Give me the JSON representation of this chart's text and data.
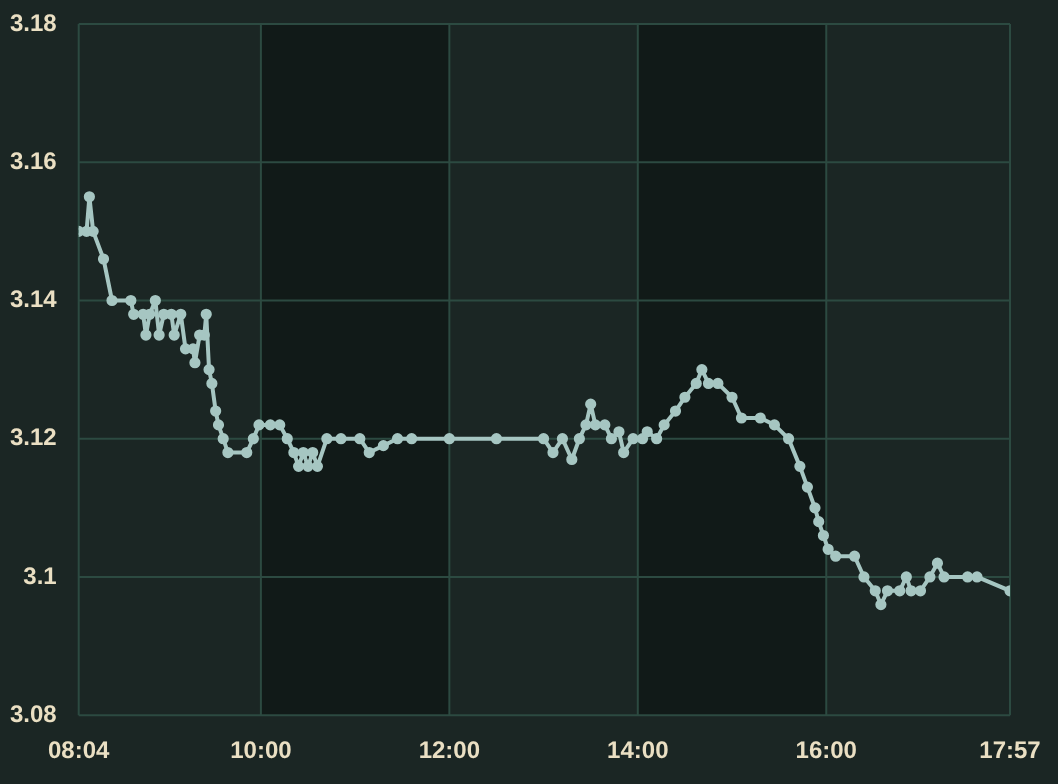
{
  "chart_data": {
    "type": "line",
    "x": [
      8.067,
      8.15,
      8.18,
      8.22,
      8.33,
      8.42,
      8.62,
      8.65,
      8.75,
      8.78,
      8.82,
      8.88,
      8.92,
      8.97,
      9.05,
      9.08,
      9.15,
      9.2,
      9.28,
      9.3,
      9.35,
      9.4,
      9.42,
      9.45,
      9.48,
      9.52,
      9.55,
      9.6,
      9.65,
      9.85,
      9.92,
      9.98,
      10.1,
      10.2,
      10.28,
      10.35,
      10.4,
      10.45,
      10.5,
      10.55,
      10.6,
      10.7,
      10.85,
      11.05,
      11.15,
      11.3,
      11.45,
      11.6,
      12,
      12.5,
      13,
      13.1,
      13.2,
      13.3,
      13.38,
      13.45,
      13.5,
      13.55,
      13.65,
      13.72,
      13.8,
      13.85,
      13.95,
      14.05,
      14.1,
      14.2,
      14.28,
      14.4,
      14.5,
      14.62,
      14.68,
      14.75,
      14.85,
      15,
      15.1,
      15.3,
      15.45,
      15.6,
      15.72,
      15.8,
      15.88,
      15.92,
      15.97,
      16.02,
      16.1,
      16.3,
      16.4,
      16.52,
      16.58,
      16.65,
      16.78,
      16.85,
      16.9,
      17,
      17.1,
      17.18,
      17.25,
      17.5,
      17.6,
      17.95
    ],
    "series": [
      {
        "color": "#a6c6c2",
        "values": [
          3.15,
          3.15,
          3.155,
          3.15,
          3.146,
          3.14,
          3.14,
          3.138,
          3.138,
          3.135,
          3.138,
          3.14,
          3.135,
          3.138,
          3.138,
          3.135,
          3.138,
          3.133,
          3.133,
          3.131,
          3.135,
          3.135,
          3.138,
          3.13,
          3.128,
          3.124,
          3.122,
          3.12,
          3.118,
          3.118,
          3.12,
          3.122,
          3.122,
          3.122,
          3.12,
          3.118,
          3.116,
          3.118,
          3.116,
          3.118,
          3.116,
          3.12,
          3.12,
          3.12,
          3.118,
          3.119,
          3.12,
          3.12,
          3.12,
          3.12,
          3.12,
          3.118,
          3.12,
          3.117,
          3.12,
          3.122,
          3.125,
          3.122,
          3.122,
          3.12,
          3.121,
          3.118,
          3.12,
          3.12,
          3.121,
          3.12,
          3.122,
          3.124,
          3.126,
          3.128,
          3.13,
          3.128,
          3.128,
          3.126,
          3.123,
          3.123,
          3.122,
          3.12,
          3.116,
          3.113,
          3.11,
          3.108,
          3.106,
          3.104,
          3.103,
          3.103,
          3.1,
          3.098,
          3.096,
          3.098,
          3.098,
          3.1,
          3.098,
          3.098,
          3.1,
          3.102,
          3.1,
          3.1,
          3.1,
          3.098
        ]
      }
    ],
    "xlim": [
      8.0667,
      17.95
    ],
    "xticks": [
      {
        "value": 8.0667,
        "label": "08:04"
      },
      {
        "value": 10,
        "label": "10:00"
      },
      {
        "value": 12,
        "label": "12:00"
      },
      {
        "value": 14,
        "label": "14:00"
      },
      {
        "value": 16,
        "label": "16:00"
      },
      {
        "value": 17.95,
        "label": "17:57"
      }
    ],
    "ylim": [
      3.08,
      3.18
    ],
    "yticks": [
      3.08,
      3.1,
      3.12,
      3.14,
      3.16,
      3.18
    ],
    "bands": [
      {
        "axis": "x",
        "from": 10,
        "to": 12,
        "color": "#111a18"
      },
      {
        "axis": "x",
        "from": 14,
        "to": 16,
        "color": "#111a18"
      }
    ],
    "grid": true,
    "marker": "circle",
    "line_style": "solid",
    "legend": false
  }
}
